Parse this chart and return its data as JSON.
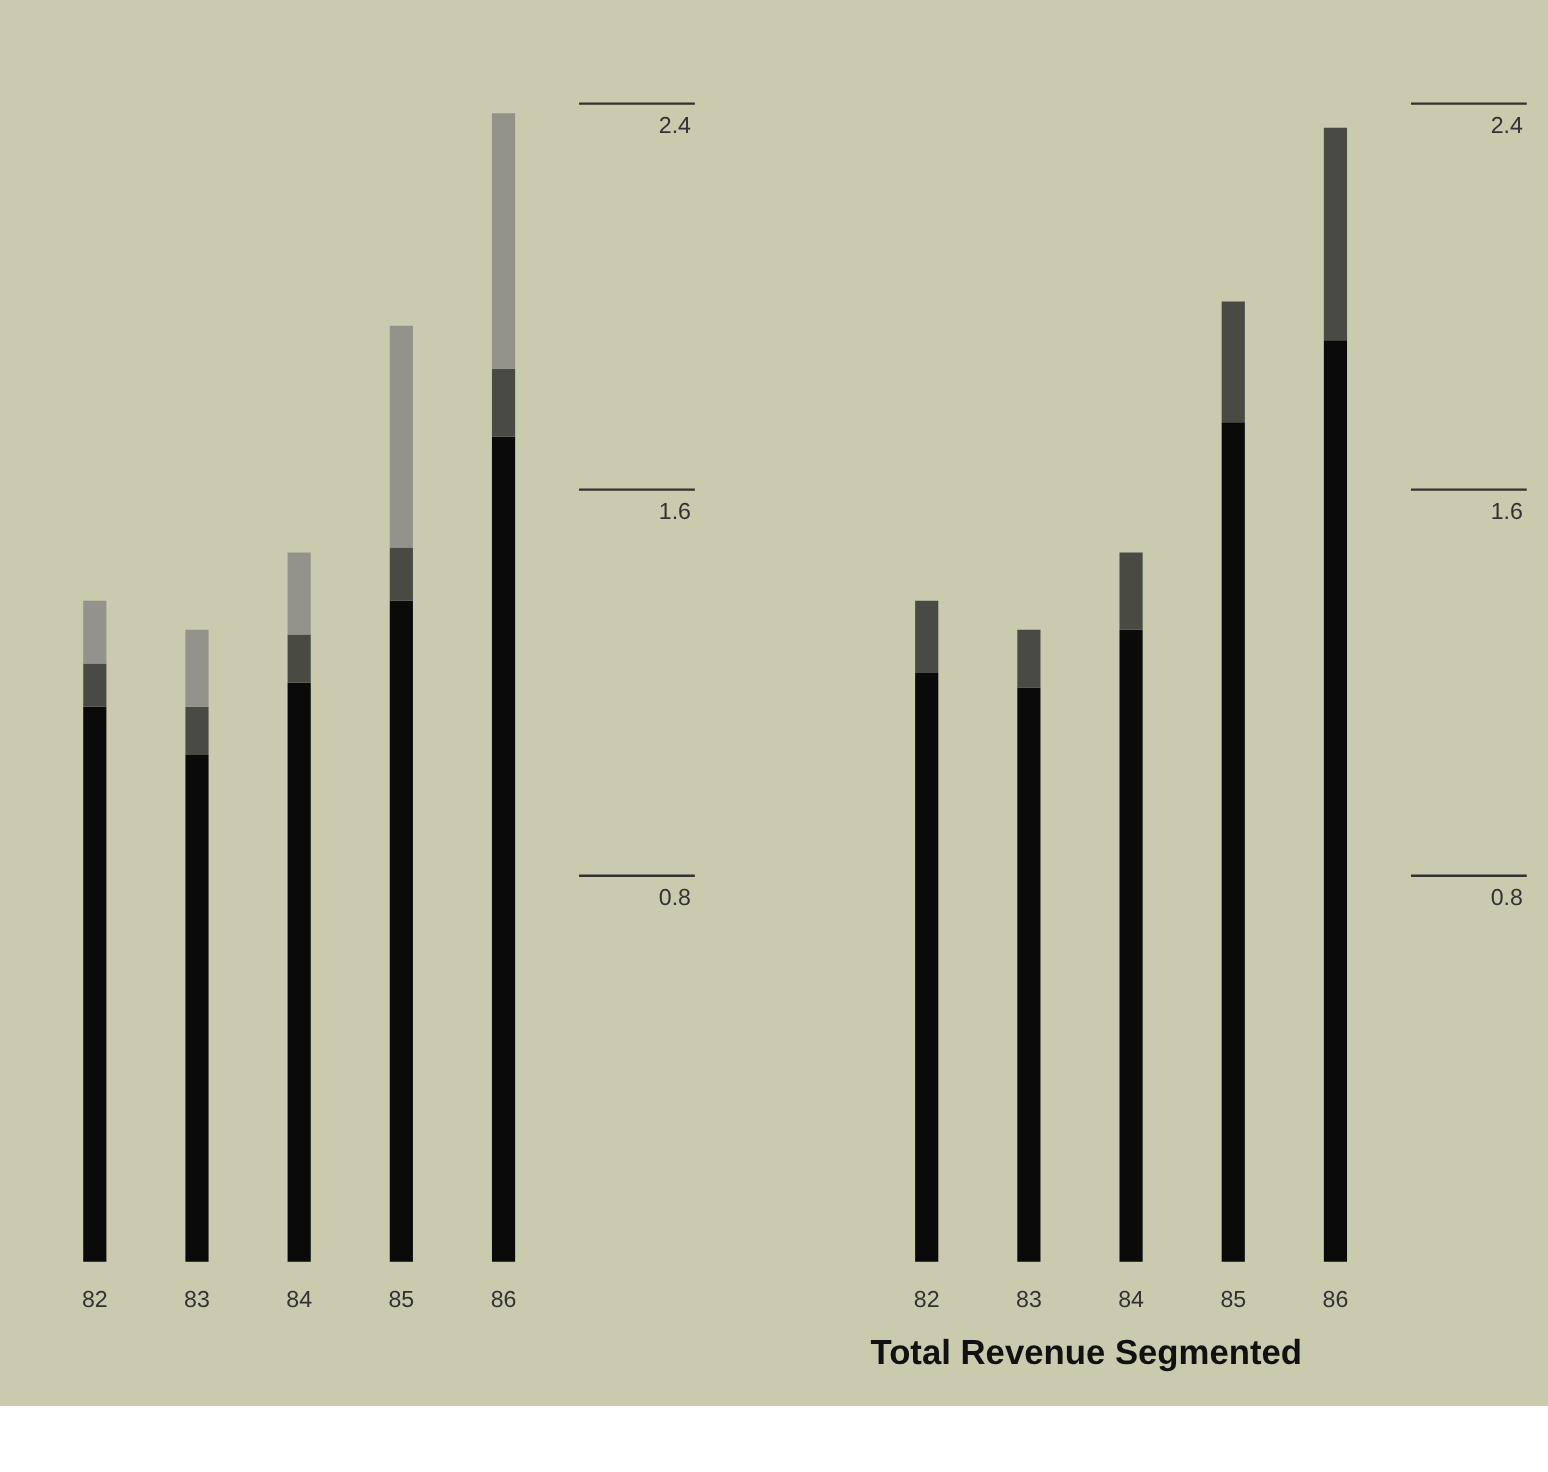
{
  "chart_data": [
    {
      "type": "bar",
      "stacked": true,
      "categories": [
        "82",
        "83",
        "84",
        "85",
        "86"
      ],
      "series": [
        {
          "color": "#0a0a0a",
          "values": [
            1.15,
            1.05,
            1.2,
            1.37,
            1.71
          ]
        },
        {
          "color": "#4a4a44",
          "values": [
            0.09,
            0.1,
            0.1,
            0.11,
            0.14
          ]
        },
        {
          "color": "#93938b",
          "values": [
            0.13,
            0.16,
            0.17,
            0.46,
            0.53
          ]
        }
      ],
      "ylim": [
        0,
        2.4
      ],
      "yticks": [
        0.8,
        1.6,
        2.4
      ],
      "grid": false,
      "legend": false
    },
    {
      "type": "bar",
      "stacked": true,
      "title": "Total Revenue Segmented",
      "categories": [
        "82",
        "83",
        "84",
        "85",
        "86"
      ],
      "series": [
        {
          "color": "#0a0a0a",
          "values": [
            1.22,
            1.19,
            1.31,
            1.74,
            1.91
          ]
        },
        {
          "color": "#4a4a44",
          "values": [
            0.15,
            0.12,
            0.16,
            0.25,
            0.44
          ]
        }
      ],
      "ylim": [
        0,
        2.4
      ],
      "yticks": [
        0.8,
        1.6,
        2.4
      ],
      "grid": false,
      "legend": false
    }
  ]
}
